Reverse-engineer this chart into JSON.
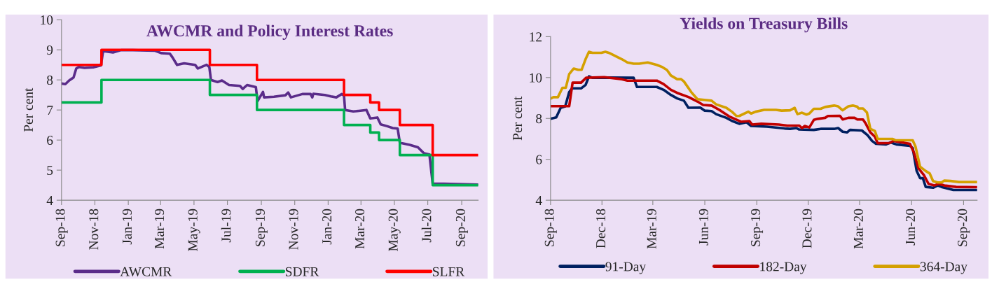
{
  "chart_data": [
    {
      "type": "line",
      "title": "AWCMR and Policy Interest Rates",
      "ylabel": "Per cent",
      "xlim": [
        "2018-09-01",
        "2020-10-01"
      ],
      "ylim": [
        4,
        10
      ],
      "yticks": [
        4,
        5,
        6,
        7,
        8,
        9,
        10
      ],
      "xticks": [
        {
          "value": "2018-09-01",
          "label": "Sep-18"
        },
        {
          "value": "2018-11-01",
          "label": "Nov-18"
        },
        {
          "value": "2019-01-01",
          "label": "Jan-19"
        },
        {
          "value": "2019-03-01",
          "label": "Mar-19"
        },
        {
          "value": "2019-05-01",
          "label": "May-19"
        },
        {
          "value": "2019-07-01",
          "label": "Jul-19"
        },
        {
          "value": "2019-09-01",
          "label": "Sep-19"
        },
        {
          "value": "2019-11-01",
          "label": "Nov-19"
        },
        {
          "value": "2020-01-01",
          "label": "Jan-20"
        },
        {
          "value": "2020-03-01",
          "label": "Mar-20"
        },
        {
          "value": "2020-05-01",
          "label": "May-20"
        },
        {
          "value": "2020-07-01",
          "label": "Jul-20"
        },
        {
          "value": "2020-09-01",
          "label": "Sep-20"
        }
      ],
      "grid": false,
      "legend": "bottom",
      "series": [
        {
          "name": "AWCMR",
          "type": "line",
          "color": "#5b2c8a",
          "x": [
            "2018-09-01",
            "2018-09-08",
            "2018-09-15",
            "2018-09-23",
            "2018-09-28",
            "2018-10-03",
            "2018-10-13",
            "2018-10-29",
            "2018-11-12",
            "2018-11-16",
            "2018-12-04",
            "2018-12-19",
            "2019-01-09",
            "2019-02-19",
            "2019-03-02",
            "2019-03-18",
            "2019-03-23",
            "2019-03-31",
            "2019-04-13",
            "2019-05-03",
            "2019-05-08",
            "2019-05-24",
            "2019-05-29",
            "2019-06-01",
            "2019-06-13",
            "2019-06-21",
            "2019-07-04",
            "2019-07-24",
            "2019-07-29",
            "2019-08-06",
            "2019-08-22",
            "2019-08-25",
            "2019-09-04",
            "2019-09-06",
            "2019-09-24",
            "2019-10-15",
            "2019-10-20",
            "2019-10-25",
            "2019-11-15",
            "2019-11-30",
            "2019-12-03",
            "2019-12-05",
            "2019-12-26",
            "2020-01-06",
            "2020-01-16",
            "2020-01-26",
            "2020-01-30",
            "2020-02-01",
            "2020-02-16",
            "2020-02-26",
            "2020-03-11",
            "2020-03-18",
            "2020-03-31",
            "2020-04-06",
            "2020-04-18",
            "2020-04-28",
            "2020-05-07",
            "2020-05-11",
            "2020-05-29",
            "2020-06-13",
            "2020-06-24",
            "2020-07-04",
            "2020-07-10",
            "2020-07-30",
            "2020-10-01"
          ],
          "values": [
            7.88,
            7.86,
            7.98,
            8.08,
            8.38,
            8.43,
            8.4,
            8.42,
            8.48,
            8.96,
            8.91,
            8.99,
            8.99,
            8.97,
            8.89,
            8.87,
            8.74,
            8.5,
            8.55,
            8.5,
            8.38,
            8.5,
            8.43,
            8.0,
            7.93,
            7.98,
            7.83,
            7.8,
            7.7,
            7.83,
            7.76,
            7.29,
            7.6,
            7.42,
            7.44,
            7.49,
            7.58,
            7.42,
            7.53,
            7.53,
            7.42,
            7.54,
            7.5,
            7.45,
            7.42,
            7.53,
            7.47,
            7.0,
            6.95,
            6.97,
            7.0,
            6.72,
            6.75,
            6.52,
            6.46,
            6.4,
            6.38,
            5.91,
            5.84,
            5.76,
            5.56,
            5.52,
            4.55,
            4.55,
            4.52
          ]
        },
        {
          "name": "SDFR",
          "type": "step",
          "color": "#00b050",
          "x": [
            "2018-09-01",
            "2018-11-13",
            "2019-05-30",
            "2019-08-24",
            "2020-01-30",
            "2020-03-18",
            "2020-04-03",
            "2020-05-11",
            "2020-07-10",
            "2020-10-01"
          ],
          "values": [
            7.25,
            8.0,
            7.5,
            7.0,
            6.5,
            6.25,
            6.0,
            5.5,
            4.5,
            4.5
          ]
        },
        {
          "name": "SLFR",
          "type": "step",
          "color": "#ff0000",
          "x": [
            "2018-09-01",
            "2018-11-13",
            "2019-05-30",
            "2019-08-24",
            "2020-01-30",
            "2020-03-18",
            "2020-04-03",
            "2020-05-11",
            "2020-07-10",
            "2020-10-01"
          ],
          "values": [
            8.5,
            9.0,
            8.5,
            8.0,
            7.5,
            7.25,
            7.0,
            6.5,
            5.5,
            5.5
          ]
        }
      ]
    },
    {
      "type": "line",
      "title": "Yields on Treasury Bills",
      "ylabel": "Per cent",
      "xlim": [
        "2018-09-01",
        "2020-09-25"
      ],
      "ylim": [
        4,
        12
      ],
      "yticks": [
        4,
        6,
        8,
        10,
        12
      ],
      "xticks": [
        {
          "value": "2018-09-01",
          "label": "Sep-18"
        },
        {
          "value": "2018-12-01",
          "label": "Dec-18"
        },
        {
          "value": "2019-03-01",
          "label": "Mar-19"
        },
        {
          "value": "2019-06-01",
          "label": "Jun-19"
        },
        {
          "value": "2019-09-01",
          "label": "Sep-19"
        },
        {
          "value": "2019-12-01",
          "label": "Dec-19"
        },
        {
          "value": "2020-03-01",
          "label": "Mar-20"
        },
        {
          "value": "2020-06-01",
          "label": "Jun-20"
        },
        {
          "value": "2020-09-01",
          "label": "Sep-20"
        }
      ],
      "grid": false,
      "legend": "bottom",
      "series": [
        {
          "name": "91-Day",
          "color": "#002060",
          "x": [
            "2018-09-01",
            "2018-09-11",
            "2018-09-19",
            "2018-09-27",
            "2018-10-04",
            "2018-10-09",
            "2018-10-25",
            "2018-11-02",
            "2018-11-08",
            "2018-11-14",
            "2018-12-05",
            "2019-01-26",
            "2019-02-01",
            "2019-03-08",
            "2019-03-20",
            "2019-04-02",
            "2019-04-13",
            "2019-04-25",
            "2019-05-03",
            "2019-05-24",
            "2019-06-01",
            "2019-06-13",
            "2019-06-21",
            "2019-07-09",
            "2019-07-19",
            "2019-08-01",
            "2019-08-14",
            "2019-08-22",
            "2019-09-19",
            "2019-10-20",
            "2019-10-30",
            "2019-11-10",
            "2019-11-15",
            "2019-12-11",
            "2019-12-23",
            "2020-01-16",
            "2020-01-23",
            "2020-01-31",
            "2020-02-08",
            "2020-02-13",
            "2020-03-05",
            "2020-03-15",
            "2020-03-23",
            "2020-03-30",
            "2020-04-17",
            "2020-04-25",
            "2020-05-05",
            "2020-05-29",
            "2020-06-03",
            "2020-06-10",
            "2020-06-16",
            "2020-06-21",
            "2020-06-26",
            "2020-07-09",
            "2020-07-17",
            "2020-07-24",
            "2020-08-14",
            "2020-09-24"
          ],
          "values": [
            7.98,
            8.05,
            8.52,
            8.59,
            9.29,
            9.47,
            9.47,
            9.64,
            10.06,
            9.99,
            10.0,
            9.99,
            9.54,
            9.54,
            9.4,
            9.15,
            8.98,
            8.87,
            8.52,
            8.53,
            8.38,
            8.36,
            8.21,
            8.03,
            7.88,
            7.74,
            7.81,
            7.63,
            7.6,
            7.51,
            7.49,
            7.53,
            7.46,
            7.44,
            7.49,
            7.49,
            7.53,
            7.35,
            7.32,
            7.44,
            7.41,
            7.18,
            6.9,
            6.76,
            6.73,
            6.83,
            6.73,
            6.66,
            6.55,
            5.43,
            5.08,
            5.08,
            4.65,
            4.61,
            4.72,
            4.65,
            4.5,
            4.5
          ]
        },
        {
          "name": "182-Day",
          "color": "#c00000",
          "x": [
            "2018-09-01",
            "2018-10-04",
            "2018-10-10",
            "2018-10-25",
            "2018-11-03",
            "2018-12-05",
            "2019-01-05",
            "2019-01-15",
            "2019-03-08",
            "2019-03-20",
            "2019-04-02",
            "2019-04-13",
            "2019-05-03",
            "2019-05-19",
            "2019-05-29",
            "2019-06-13",
            "2019-06-29",
            "2019-07-14",
            "2019-08-04",
            "2019-08-19",
            "2019-08-24",
            "2019-09-09",
            "2019-10-10",
            "2019-10-25",
            "2019-11-15",
            "2019-11-20",
            "2019-11-25",
            "2019-12-03",
            "2019-12-11",
            "2019-12-18",
            "2019-12-31",
            "2020-01-05",
            "2020-01-26",
            "2020-01-31",
            "2020-02-10",
            "2020-02-21",
            "2020-02-26",
            "2020-03-07",
            "2020-03-12",
            "2020-03-20",
            "2020-03-28",
            "2020-04-02",
            "2020-04-23",
            "2020-04-30",
            "2020-05-29",
            "2020-06-05",
            "2020-06-13",
            "2020-06-23",
            "2020-07-01",
            "2020-07-11",
            "2020-07-19",
            "2020-07-29",
            "2020-08-19",
            "2020-09-24"
          ],
          "values": [
            8.6,
            8.6,
            9.75,
            9.75,
            9.99,
            10.02,
            9.92,
            9.85,
            9.85,
            9.68,
            9.4,
            9.25,
            9.05,
            8.83,
            8.66,
            8.63,
            8.38,
            8.1,
            7.84,
            7.87,
            7.7,
            7.74,
            7.7,
            7.65,
            7.65,
            7.53,
            7.63,
            7.56,
            7.93,
            7.98,
            8.03,
            8.12,
            8.13,
            7.95,
            8.03,
            8.03,
            7.95,
            7.95,
            7.74,
            7.32,
            7.11,
            6.79,
            6.8,
            6.9,
            6.76,
            6.34,
            5.57,
            5.22,
            4.8,
            4.72,
            4.8,
            4.72,
            4.65,
            4.64
          ]
        },
        {
          "name": "364-Day",
          "color": "#d4a000",
          "x": [
            "2018-09-01",
            "2018-09-06",
            "2018-09-14",
            "2018-09-22",
            "2018-09-28",
            "2018-10-04",
            "2018-10-12",
            "2018-10-20",
            "2018-10-26",
            "2018-11-02",
            "2018-11-08",
            "2018-11-14",
            "2018-11-30",
            "2018-12-07",
            "2018-12-15",
            "2019-01-05",
            "2019-01-15",
            "2019-01-26",
            "2019-02-05",
            "2019-02-20",
            "2019-03-08",
            "2019-03-18",
            "2019-03-26",
            "2019-04-02",
            "2019-04-13",
            "2019-04-20",
            "2019-04-25",
            "2019-05-08",
            "2019-05-19",
            "2019-06-03",
            "2019-06-13",
            "2019-06-21",
            "2019-07-09",
            "2019-07-19",
            "2019-07-27",
            "2019-08-01",
            "2019-08-17",
            "2019-08-22",
            "2019-08-30",
            "2019-09-14",
            "2019-10-05",
            "2019-10-15",
            "2019-10-30",
            "2019-11-07",
            "2019-11-12",
            "2019-11-20",
            "2019-11-28",
            "2019-12-03",
            "2019-12-11",
            "2019-12-23",
            "2019-12-31",
            "2020-01-16",
            "2020-01-23",
            "2020-01-31",
            "2020-02-10",
            "2020-02-18",
            "2020-02-26",
            "2020-02-28",
            "2020-03-07",
            "2020-03-14",
            "2020-03-20",
            "2020-03-28",
            "2020-04-02",
            "2020-04-28",
            "2020-05-03",
            "2020-06-03",
            "2020-06-08",
            "2020-06-16",
            "2020-06-26",
            "2020-07-03",
            "2020-07-09",
            "2020-07-17",
            "2020-07-24",
            "2020-07-29",
            "2020-08-09",
            "2020-08-24",
            "2020-09-24"
          ],
          "values": [
            8.97,
            9.04,
            9.04,
            9.5,
            9.5,
            10.17,
            10.44,
            10.38,
            10.38,
            10.9,
            11.26,
            11.21,
            11.21,
            11.26,
            11.19,
            10.9,
            10.74,
            10.68,
            10.68,
            10.74,
            10.62,
            10.51,
            10.37,
            10.1,
            9.92,
            9.92,
            9.81,
            9.29,
            8.94,
            8.9,
            8.87,
            8.69,
            8.52,
            8.33,
            8.12,
            8.12,
            8.33,
            8.24,
            8.33,
            8.42,
            8.42,
            8.38,
            8.4,
            8.52,
            8.21,
            8.28,
            8.19,
            8.24,
            8.47,
            8.47,
            8.56,
            8.63,
            8.59,
            8.4,
            8.59,
            8.63,
            8.57,
            8.49,
            8.49,
            8.29,
            7.49,
            7.39,
            7.0,
            7.0,
            6.94,
            6.93,
            6.62,
            5.64,
            5.43,
            5.31,
            4.94,
            4.87,
            4.87,
            4.96,
            4.94,
            4.89,
            4.89
          ]
        }
      ]
    }
  ]
}
